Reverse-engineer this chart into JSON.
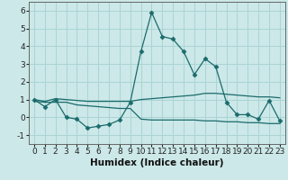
{
  "xlabel": "Humidex (Indice chaleur)",
  "ylabel": "",
  "bg_color": "#cce8e8",
  "grid_color": "#aad4d4",
  "line_color": "#1a6b6b",
  "xlim": [
    -0.5,
    23.5
  ],
  "ylim": [
    -1.5,
    6.5
  ],
  "xticks": [
    0,
    1,
    2,
    3,
    4,
    5,
    6,
    7,
    8,
    9,
    10,
    11,
    12,
    13,
    14,
    15,
    16,
    17,
    18,
    19,
    20,
    21,
    22,
    23
  ],
  "yticks": [
    -1,
    0,
    1,
    2,
    3,
    4,
    5,
    6
  ],
  "line1_x": [
    0,
    1,
    2,
    3,
    4,
    5,
    6,
    7,
    8,
    9,
    10,
    11,
    12,
    13,
    14,
    15,
    16,
    17,
    18,
    19,
    20,
    21,
    22,
    23
  ],
  "line1_y": [
    1.0,
    0.6,
    1.0,
    0.0,
    -0.1,
    -0.6,
    -0.5,
    -0.4,
    -0.15,
    0.85,
    3.7,
    5.9,
    4.55,
    4.4,
    3.7,
    2.4,
    3.3,
    2.85,
    0.85,
    0.15,
    0.15,
    -0.1,
    0.95,
    -0.2
  ],
  "line2_x": [
    0,
    1,
    2,
    3,
    4,
    5,
    6,
    7,
    8,
    9,
    10,
    11,
    12,
    13,
    14,
    15,
    16,
    17,
    18,
    19,
    20,
    21,
    22,
    23
  ],
  "line2_y": [
    1.0,
    0.9,
    1.05,
    1.0,
    0.95,
    0.9,
    0.9,
    0.9,
    0.9,
    0.9,
    1.0,
    1.05,
    1.1,
    1.15,
    1.2,
    1.25,
    1.35,
    1.35,
    1.3,
    1.25,
    1.2,
    1.15,
    1.15,
    1.1
  ],
  "line3_x": [
    0,
    1,
    2,
    3,
    4,
    5,
    6,
    7,
    8,
    9,
    10,
    11,
    12,
    13,
    14,
    15,
    16,
    17,
    18,
    19,
    20,
    21,
    22,
    23
  ],
  "line3_y": [
    0.9,
    0.85,
    0.85,
    0.85,
    0.7,
    0.65,
    0.6,
    0.55,
    0.5,
    0.5,
    -0.1,
    -0.15,
    -0.15,
    -0.15,
    -0.15,
    -0.15,
    -0.2,
    -0.2,
    -0.25,
    -0.25,
    -0.3,
    -0.3,
    -0.35,
    -0.35
  ],
  "tick_fontsize": 6.5,
  "xlabel_fontsize": 7.5
}
